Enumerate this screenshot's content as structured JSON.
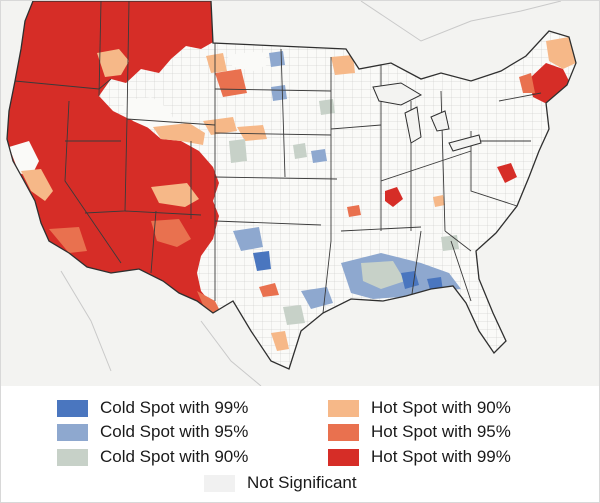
{
  "map": {
    "region": "Contiguous United States",
    "land_color": "#fafaf8",
    "outside_color": "#f3f3f1",
    "border_color": "#3a3a3a",
    "county_line_color": "#b9b9b9"
  },
  "legend": {
    "items": [
      {
        "key": "cold99",
        "label": "Cold Spot with 99%",
        "color": "#4a76bf"
      },
      {
        "key": "cold95",
        "label": "Cold Spot with 95%",
        "color": "#8ea8cf"
      },
      {
        "key": "cold90",
        "label": "Cold Spot with 90%",
        "color": "#c7d1c8"
      },
      {
        "key": "hot90",
        "label": "Hot Spot with 90%",
        "color": "#f6b888"
      },
      {
        "key": "hot95",
        "label": "Hot Spot with 95%",
        "color": "#e9714f"
      },
      {
        "key": "hot99",
        "label": "Hot Spot with 99%",
        "color": "#d62d27"
      },
      {
        "key": "ns",
        "label": "Not Significant",
        "color": "#f1f1f1"
      }
    ]
  }
}
